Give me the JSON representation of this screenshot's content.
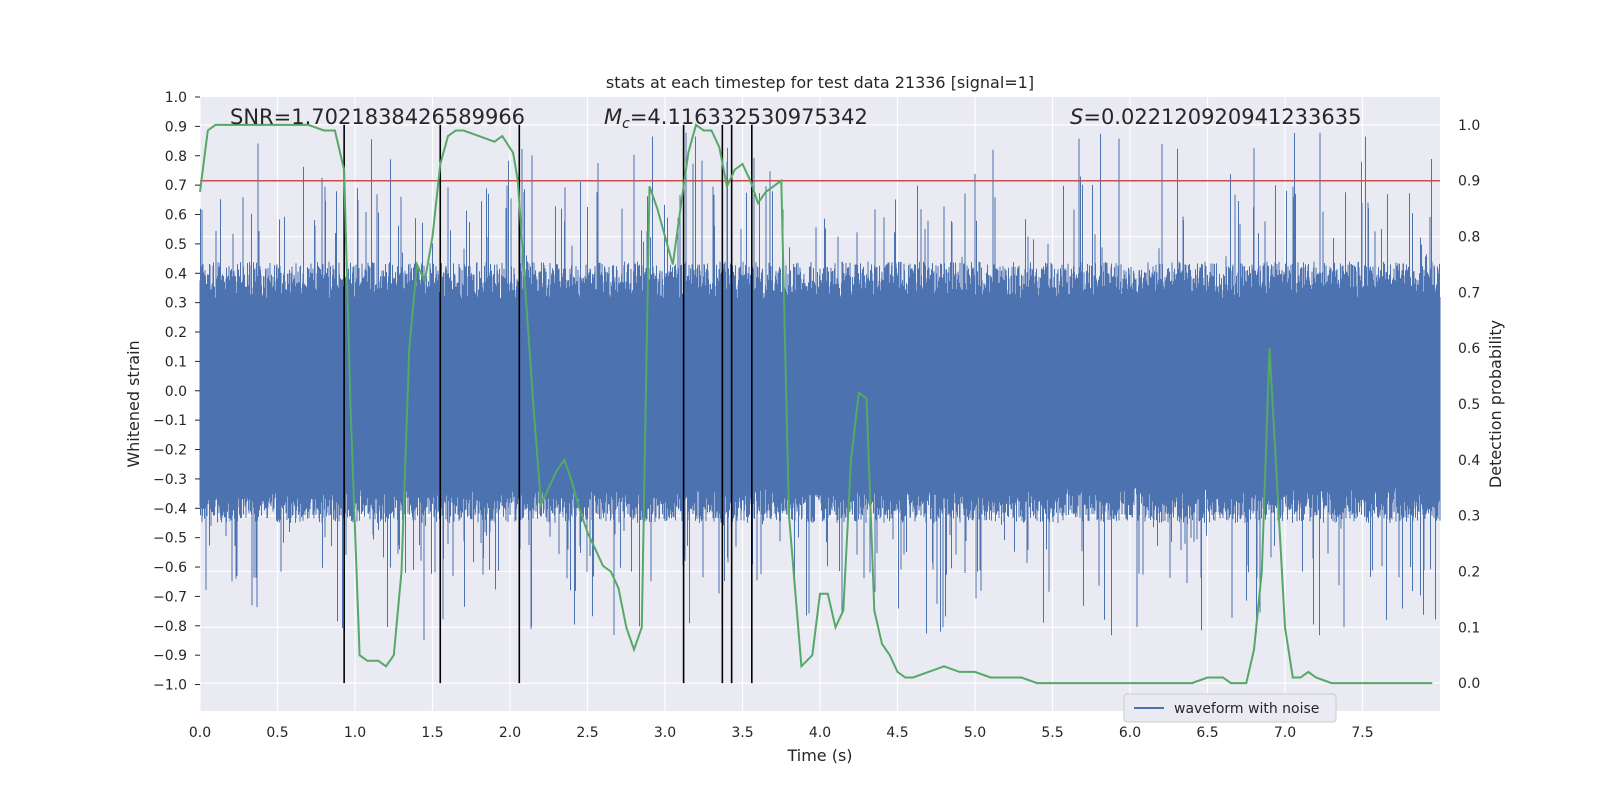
{
  "chart_data": {
    "type": "line",
    "title": "stats at each timestep for test data 21336 [signal=1]",
    "xlabel": "Time (s)",
    "ylabel_left": "Whitened strain",
    "ylabel_right": "Detection probability",
    "xlim": [
      0.0,
      8.0
    ],
    "ylim_left": [
      -1.09,
      1.0
    ],
    "ylim_right": [
      -0.05,
      1.05
    ],
    "x_ticks": [
      "0.0",
      "0.5",
      "1.0",
      "1.5",
      "2.0",
      "2.5",
      "3.0",
      "3.5",
      "4.0",
      "4.5",
      "5.0",
      "5.5",
      "6.0",
      "6.5",
      "7.0",
      "7.5"
    ],
    "y_left_ticks": [
      "1.0",
      "0.9",
      "0.8",
      "0.7",
      "0.6",
      "0.5",
      "0.4",
      "0.3",
      "0.2",
      "0.1",
      "0.0",
      "−0.1",
      "−0.2",
      "−0.3",
      "−0.4",
      "−0.5",
      "−0.6",
      "−0.7",
      "−0.8",
      "−0.9",
      "−1.0"
    ],
    "y_right_ticks": [
      "1.0",
      "0.9",
      "0.8",
      "0.7",
      "0.6",
      "0.5",
      "0.4",
      "0.3",
      "0.2",
      "0.1",
      "0.0"
    ],
    "grid": true,
    "annotations": {
      "snr": "SNR=1.7021838426589966",
      "mc_symbol": "M",
      "mc_subscript": "c",
      "mc_value": "=4.116332530975342",
      "s_symbol": "S",
      "s_value": "=0.022120920941233635"
    },
    "threshold": 0.9,
    "series": [
      {
        "name": "waveform with noise",
        "axis": "left",
        "color": "#4c72b0",
        "description": "whitened strain noise, bulk amplitude about ±0.33 to ±0.43 with spikes up to about ±1.0"
      },
      {
        "name": "detection probability",
        "axis": "right",
        "color": "#55a868",
        "x": [
          0.0,
          0.05,
          0.1,
          0.2,
          0.4,
          0.6,
          0.7,
          0.8,
          0.87,
          0.93,
          0.97,
          1.03,
          1.08,
          1.15,
          1.2,
          1.25,
          1.3,
          1.35,
          1.4,
          1.45,
          1.5,
          1.55,
          1.6,
          1.65,
          1.7,
          1.8,
          1.9,
          1.95,
          2.02,
          2.05,
          2.1,
          2.15,
          2.2,
          2.25,
          2.3,
          2.35,
          2.4,
          2.45,
          2.5,
          2.55,
          2.6,
          2.65,
          2.7,
          2.75,
          2.8,
          2.85,
          2.9,
          2.95,
          3.0,
          3.05,
          3.1,
          3.15,
          3.2,
          3.25,
          3.3,
          3.35,
          3.4,
          3.45,
          3.5,
          3.55,
          3.6,
          3.65,
          3.7,
          3.75,
          3.8,
          3.88,
          3.95,
          4.0,
          4.05,
          4.1,
          4.15,
          4.2,
          4.25,
          4.3,
          4.35,
          4.4,
          4.45,
          4.5,
          4.55,
          4.6,
          4.7,
          4.8,
          4.9,
          5.0,
          5.1,
          5.2,
          5.3,
          5.4,
          5.5,
          5.6,
          5.8,
          6.0,
          6.2,
          6.4,
          6.5,
          6.55,
          6.6,
          6.65,
          6.7,
          6.75,
          6.8,
          6.85,
          6.9,
          6.95,
          7.0,
          7.05,
          7.1,
          7.15,
          7.2,
          7.3,
          7.4,
          7.5,
          7.6,
          7.7,
          7.8,
          7.95
        ],
        "values": [
          0.88,
          0.99,
          1.0,
          1.0,
          1.0,
          1.0,
          1.0,
          0.99,
          0.99,
          0.92,
          0.5,
          0.05,
          0.04,
          0.04,
          0.03,
          0.05,
          0.2,
          0.6,
          0.75,
          0.72,
          0.8,
          0.93,
          0.98,
          0.99,
          0.99,
          0.98,
          0.97,
          0.98,
          0.95,
          0.9,
          0.7,
          0.5,
          0.32,
          0.35,
          0.38,
          0.4,
          0.36,
          0.31,
          0.27,
          0.24,
          0.21,
          0.2,
          0.17,
          0.1,
          0.06,
          0.1,
          0.89,
          0.85,
          0.8,
          0.75,
          0.85,
          0.95,
          1.0,
          0.99,
          0.99,
          0.96,
          0.89,
          0.92,
          0.93,
          0.9,
          0.86,
          0.88,
          0.89,
          0.9,
          0.3,
          0.03,
          0.05,
          0.16,
          0.16,
          0.1,
          0.13,
          0.4,
          0.52,
          0.51,
          0.13,
          0.07,
          0.05,
          0.02,
          0.01,
          0.01,
          0.02,
          0.03,
          0.02,
          0.02,
          0.01,
          0.01,
          0.01,
          0.0,
          0.0,
          0.0,
          0.0,
          0.0,
          0.0,
          0.0,
          0.01,
          0.01,
          0.01,
          0.0,
          0.0,
          0.0,
          0.06,
          0.2,
          0.6,
          0.35,
          0.1,
          0.01,
          0.01,
          0.02,
          0.01,
          0.0,
          0.0,
          0.0,
          0.0,
          0.0,
          0.0,
          0.0
        ]
      }
    ],
    "event_markers_x": [
      0.93,
      1.55,
      2.06,
      3.12,
      3.37,
      3.43,
      3.56
    ],
    "legend": {
      "entries": [
        "waveform with noise"
      ],
      "position": "lower-right"
    }
  }
}
